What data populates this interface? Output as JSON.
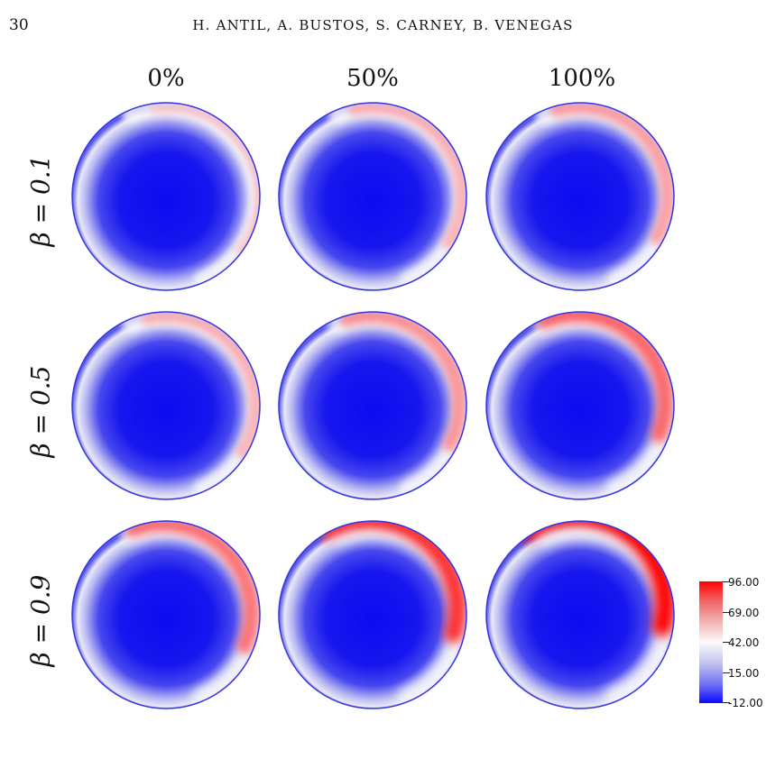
{
  "page": {
    "number": "30",
    "running_head": "H. ANTIL, A. BUSTOS, S. CARNEY, B. VENEGAS"
  },
  "figure": {
    "columns": [
      "0%",
      "50%",
      "100%"
    ],
    "rows": [
      "β = 0.1",
      "β = 0.5",
      "β = 0.9"
    ],
    "panel_intensity": [
      [
        0.15,
        0.3,
        0.4
      ],
      [
        0.3,
        0.45,
        0.65
      ],
      [
        0.6,
        0.85,
        1.0
      ]
    ],
    "colorbar": {
      "labels": [
        "96.00",
        "69.00",
        "42.00",
        "15.00",
        "-12.00"
      ],
      "color_max": "#ff0000",
      "color_mid": "#ffffff",
      "color_min": "#0000ff"
    }
  }
}
